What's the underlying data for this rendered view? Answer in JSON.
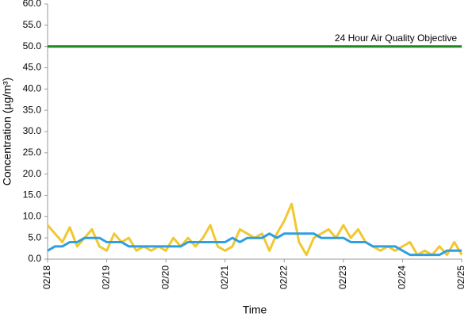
{
  "chart_data": {
    "type": "line",
    "x_label": "Time",
    "y_label": "Concentration (µg/m³)",
    "xlim": [
      0,
      7
    ],
    "xticks": [
      {
        "value": 0,
        "label": "02/18"
      },
      {
        "value": 1,
        "label": "02/19"
      },
      {
        "value": 2,
        "label": "02/20"
      },
      {
        "value": 3,
        "label": "02/21"
      },
      {
        "value": 4,
        "label": "02/22"
      },
      {
        "value": 5,
        "label": "02/23"
      },
      {
        "value": 6,
        "label": "02/24"
      },
      {
        "value": 7,
        "label": "02/25"
      }
    ],
    "ylim": [
      0,
      60
    ],
    "yticks": [
      {
        "value": 0,
        "label": "0.0"
      },
      {
        "value": 5,
        "label": "5.0"
      },
      {
        "value": 10,
        "label": "10.0"
      },
      {
        "value": 15,
        "label": "15.0"
      },
      {
        "value": 20,
        "label": "20.0"
      },
      {
        "value": 25,
        "label": "25.0"
      },
      {
        "value": 30,
        "label": "30.0"
      },
      {
        "value": 35,
        "label": "35.0"
      },
      {
        "value": 40,
        "label": "40.0"
      },
      {
        "value": 45,
        "label": "45.0"
      },
      {
        "value": 50,
        "label": "50.0"
      },
      {
        "value": 55,
        "label": "55.0"
      },
      {
        "value": 60,
        "label": "60.0"
      }
    ],
    "grid": false,
    "x": [
      0,
      0.125,
      0.25,
      0.375,
      0.5,
      0.625,
      0.75,
      0.875,
      1,
      1.125,
      1.25,
      1.375,
      1.5,
      1.625,
      1.75,
      1.875,
      2,
      2.125,
      2.25,
      2.375,
      2.5,
      2.625,
      2.75,
      2.875,
      3,
      3.125,
      3.25,
      3.375,
      3.5,
      3.625,
      3.75,
      3.875,
      4,
      4.125,
      4.25,
      4.375,
      4.5,
      4.625,
      4.75,
      4.875,
      5,
      5.125,
      5.25,
      5.375,
      5.5,
      5.625,
      5.75,
      5.875,
      6,
      6.125,
      6.25,
      6.375,
      6.5,
      6.625,
      6.75,
      6.875,
      7
    ],
    "series": [
      {
        "color": "#f0c832",
        "values": [
          8,
          6,
          4,
          7.5,
          3,
          5,
          7,
          3,
          2,
          6,
          4,
          5,
          2,
          3,
          2,
          3,
          2,
          5,
          3,
          5,
          3,
          5,
          8,
          3,
          2,
          3,
          7,
          6,
          5,
          6,
          2,
          6,
          9,
          13,
          4,
          1,
          5,
          6,
          7,
          5,
          8,
          5,
          7,
          4,
          3,
          2,
          3,
          2,
          3,
          4,
          1,
          2,
          1,
          3,
          1,
          4,
          1
        ]
      },
      {
        "color": "#2e9fe0",
        "values": [
          2,
          3,
          3,
          4,
          4,
          5,
          5,
          5,
          4,
          4,
          4,
          3,
          3,
          3,
          3,
          3,
          3,
          3,
          3,
          4,
          4,
          4,
          4,
          4,
          4,
          5,
          4,
          5,
          5,
          5,
          6,
          5,
          6,
          6,
          6,
          6,
          6,
          5,
          5,
          5,
          5,
          4,
          4,
          4,
          3,
          3,
          3,
          3,
          2,
          1,
          1,
          1,
          1,
          1,
          2,
          2,
          2
        ]
      }
    ],
    "objective": {
      "value": 50,
      "label": "24 Hour Air Quality Objective",
      "color": "#1f8a1f"
    }
  }
}
